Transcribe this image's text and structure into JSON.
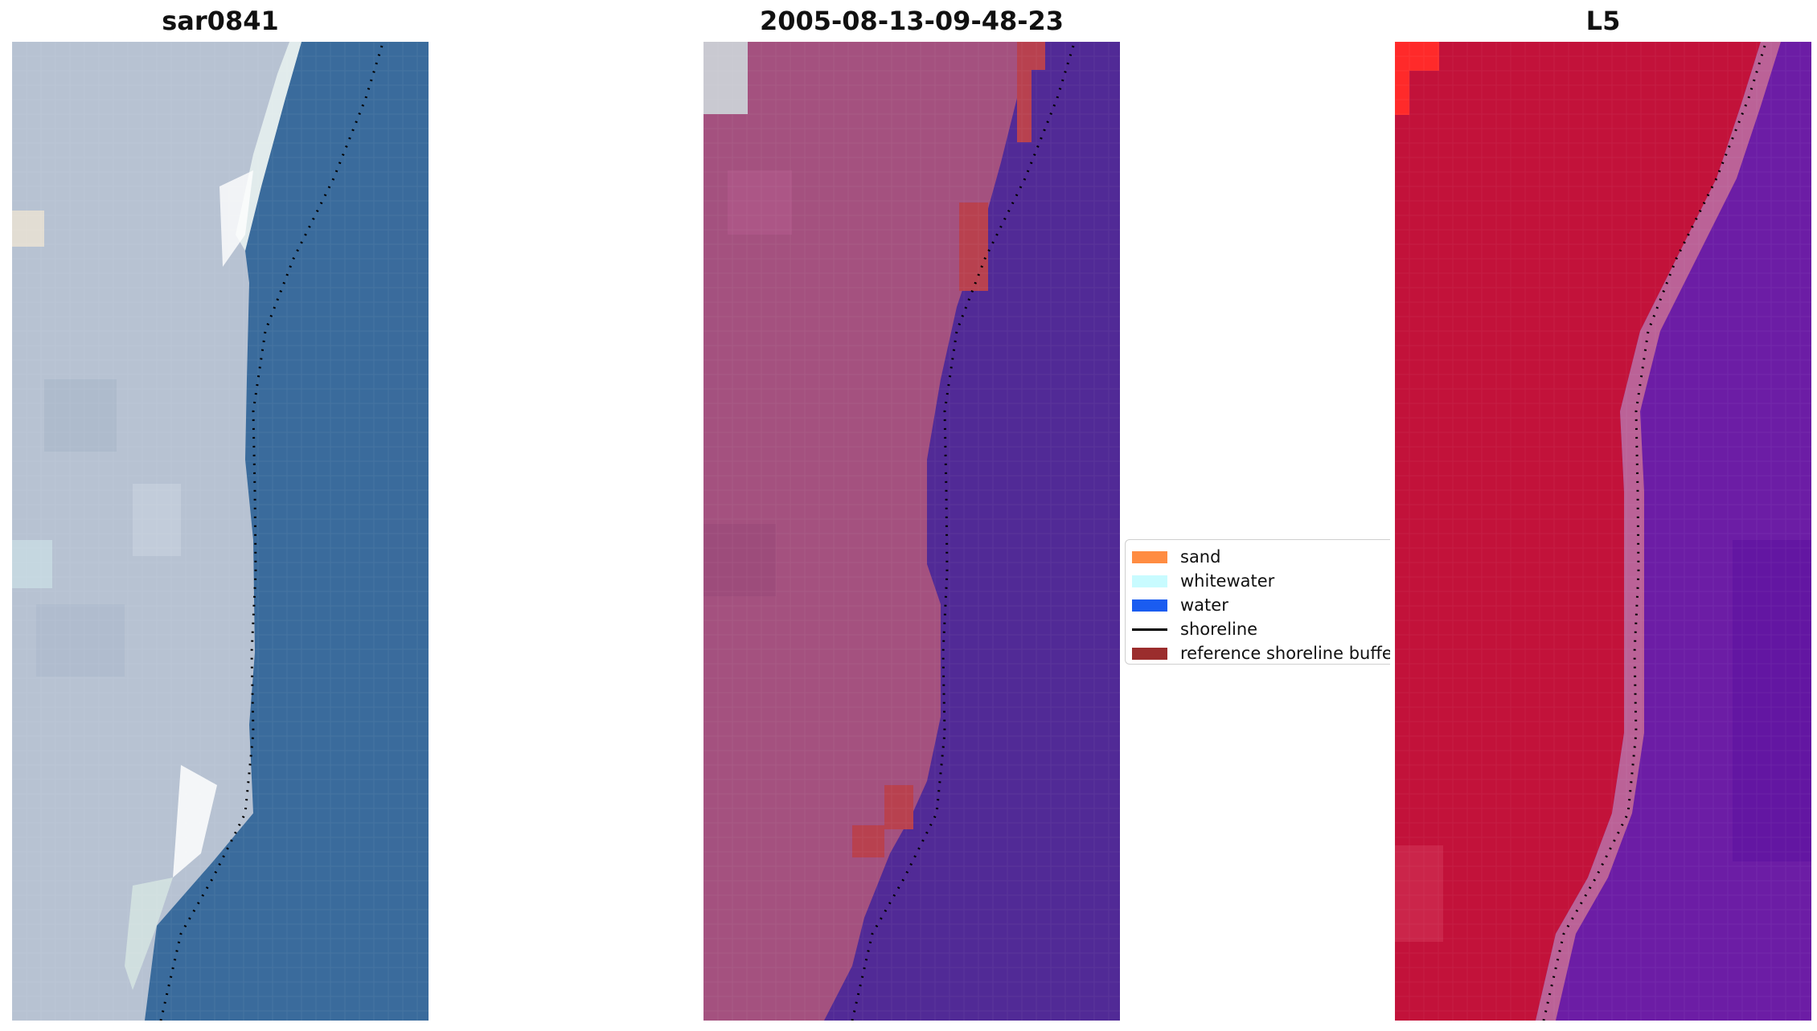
{
  "panels": [
    {
      "title": "sar0841"
    },
    {
      "title": "2005-08-13-09-48-23"
    },
    {
      "title": "L5"
    }
  ],
  "legend": {
    "items": [
      {
        "label": "sand",
        "kind": "patch",
        "color": "#ff8c42"
      },
      {
        "label": "whitewater",
        "kind": "patch",
        "color": "#c8fbff"
      },
      {
        "label": "water",
        "kind": "patch",
        "color": "#1a5cf0"
      },
      {
        "label": "shoreline",
        "kind": "line",
        "color": "#000000"
      },
      {
        "label": "reference shoreline buffer",
        "kind": "patch",
        "color": "#9b2d2d"
      }
    ]
  },
  "colors": {
    "rgb_sand": "#b7c2d2",
    "rgb_water": "#3a6b9c",
    "class_land": "#a4517f",
    "class_water": "#512a96",
    "index_land": "#c2123a",
    "index_water": "#6c1da5"
  }
}
